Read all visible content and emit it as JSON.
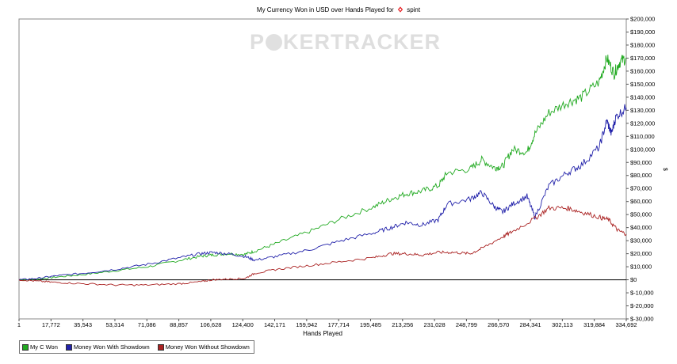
{
  "chart_data": {
    "type": "line",
    "title": "My Currency Won in USD over Hands Played for",
    "player": "spint",
    "xlabel": "Hands Played",
    "ylabel": "$",
    "watermark": "POKERTRACKER",
    "x_ticks": [
      "1",
      "17,772",
      "35,543",
      "53,314",
      "71,086",
      "88,857",
      "106,628",
      "124,400",
      "142,171",
      "159,942",
      "177,714",
      "195,485",
      "213,256",
      "231,028",
      "248,799",
      "266,570",
      "284,341",
      "302,113",
      "319,884",
      "334,692"
    ],
    "y_ticks": [
      "$200,000",
      "$190,000",
      "$180,000",
      "$170,000",
      "$160,000",
      "$150,000",
      "$140,000",
      "$130,000",
      "$120,000",
      "$110,000",
      "$100,000",
      "$90,000",
      "$80,000",
      "$70,000",
      "$60,000",
      "$50,000",
      "$40,000",
      "$30,000",
      "$20,000",
      "$10,000",
      "$0",
      "$-10,000",
      "$-20,000",
      "$-30,000"
    ],
    "xlim": [
      1,
      334692
    ],
    "ylim": [
      -30000,
      200000
    ],
    "grid": false,
    "legend_position": "bottom-left",
    "series": [
      {
        "name": "My C Won",
        "color": "#22aa22",
        "x": [
          1,
          10000,
          20000,
          35543,
          53314,
          71086,
          88857,
          100000,
          106628,
          115000,
          124400,
          130000,
          142171,
          159942,
          177714,
          195485,
          205000,
          213256,
          222000,
          231028,
          236000,
          248799,
          255000,
          262000,
          266570,
          272000,
          280000,
          284341,
          292000,
          302113,
          310000,
          319884,
          324000,
          328000,
          331000,
          334692
        ],
        "y": [
          0,
          500,
          2000,
          4000,
          7000,
          10000,
          15000,
          18000,
          19000,
          20000,
          19500,
          22000,
          28000,
          37000,
          47000,
          56000,
          62000,
          66000,
          68000,
          72000,
          82000,
          85000,
          92000,
          86000,
          87000,
          100000,
          98000,
          112000,
          128000,
          136000,
          140000,
          152000,
          170000,
          158000,
          167000,
          170000
        ]
      },
      {
        "name": "Money Won With Showdown",
        "color": "#2222aa",
        "x": [
          1,
          10000,
          20000,
          35543,
          53314,
          71086,
          88857,
          100000,
          106628,
          115000,
          124400,
          130000,
          142171,
          159942,
          177714,
          195485,
          205000,
          213256,
          222000,
          231028,
          236000,
          248799,
          255000,
          262000,
          266570,
          272000,
          280000,
          284341,
          292000,
          302113,
          310000,
          319884,
          324000,
          326500,
          329000,
          334692
        ],
        "y": [
          0,
          1000,
          3000,
          5000,
          8000,
          12000,
          17000,
          20000,
          21000,
          20000,
          18000,
          15000,
          18000,
          23000,
          30000,
          36000,
          40000,
          44000,
          42000,
          46000,
          58000,
          62000,
          67000,
          56000,
          52000,
          58000,
          64000,
          48000,
          72000,
          82000,
          88000,
          102000,
          122000,
          112000,
          125000,
          132000
        ]
      },
      {
        "name": "Money Won Without Showdown",
        "color": "#aa2222",
        "x": [
          1,
          10000,
          20000,
          35543,
          53314,
          71086,
          88857,
          100000,
          106628,
          115000,
          124400,
          130000,
          142171,
          159942,
          177714,
          195485,
          205000,
          213256,
          222000,
          231028,
          240000,
          248799,
          255000,
          266570,
          272000,
          284341,
          292000,
          302113,
          310000,
          319884,
          325000,
          330000,
          334692
        ],
        "y": [
          0,
          -1000,
          -2000,
          -3000,
          -4000,
          -4000,
          -3000,
          -1500,
          0,
          500,
          1000,
          5000,
          8000,
          11000,
          14000,
          17000,
          20000,
          20000,
          19000,
          21000,
          21000,
          20000,
          24000,
          33000,
          37000,
          47000,
          55000,
          55000,
          52000,
          48000,
          46000,
          38000,
          35000
        ]
      }
    ]
  }
}
